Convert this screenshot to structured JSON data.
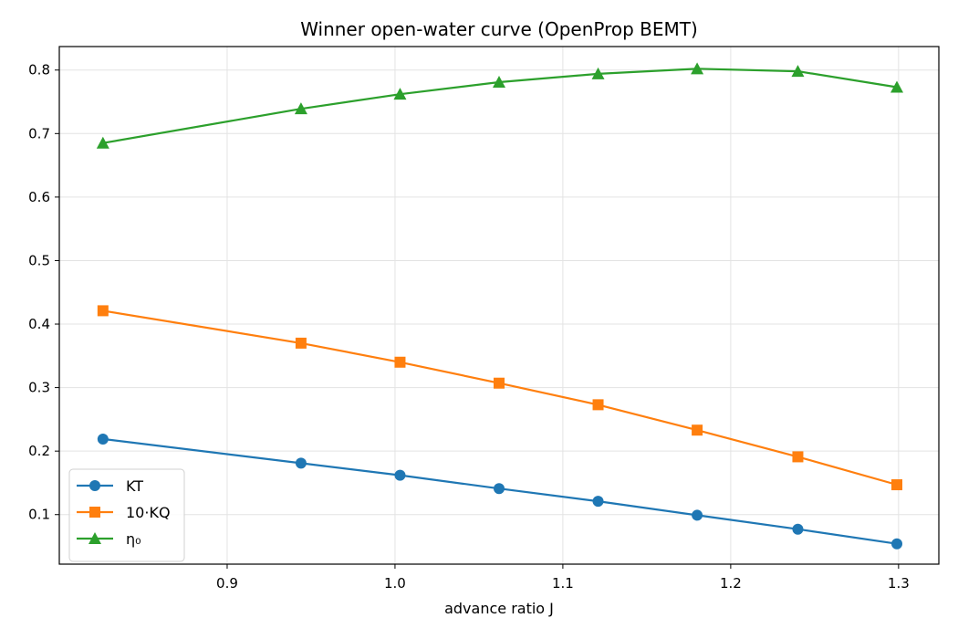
{
  "chart_data": {
    "type": "line",
    "title": "Winner open-water curve (OpenProp BEMT)",
    "xlabel": "advance ratio J",
    "ylabel": "",
    "x": [
      0.826,
      0.944,
      1.003,
      1.062,
      1.121,
      1.18,
      1.24,
      1.299
    ],
    "xlim": [
      0.8,
      1.324
    ],
    "ylim": [
      0.022,
      0.837
    ],
    "xticks": [
      0.9,
      1.0,
      1.1,
      1.2,
      1.3
    ],
    "xtick_labels": [
      "0.9",
      "1.0",
      "1.1",
      "1.2",
      "1.3"
    ],
    "yticks": [
      0.1,
      0.2,
      0.3,
      0.4,
      0.5,
      0.6,
      0.7,
      0.8
    ],
    "ytick_labels": [
      "0.1",
      "0.2",
      "0.3",
      "0.4",
      "0.5",
      "0.6",
      "0.7",
      "0.8"
    ],
    "grid": true,
    "legend_position": "lower-left",
    "series": [
      {
        "name": "KT",
        "color": "#1f77b4",
        "marker": "circle",
        "values": [
          0.219,
          0.181,
          0.162,
          0.141,
          0.121,
          0.099,
          0.077,
          0.054
        ]
      },
      {
        "name": "10·KQ",
        "color": "#ff7f0e",
        "marker": "square",
        "values": [
          0.421,
          0.37,
          0.34,
          0.307,
          0.273,
          0.233,
          0.191,
          0.147
        ]
      },
      {
        "name": "η₀",
        "color": "#2ca02c",
        "marker": "triangle",
        "values": [
          0.685,
          0.739,
          0.762,
          0.781,
          0.794,
          0.802,
          0.798,
          0.773
        ]
      }
    ]
  }
}
